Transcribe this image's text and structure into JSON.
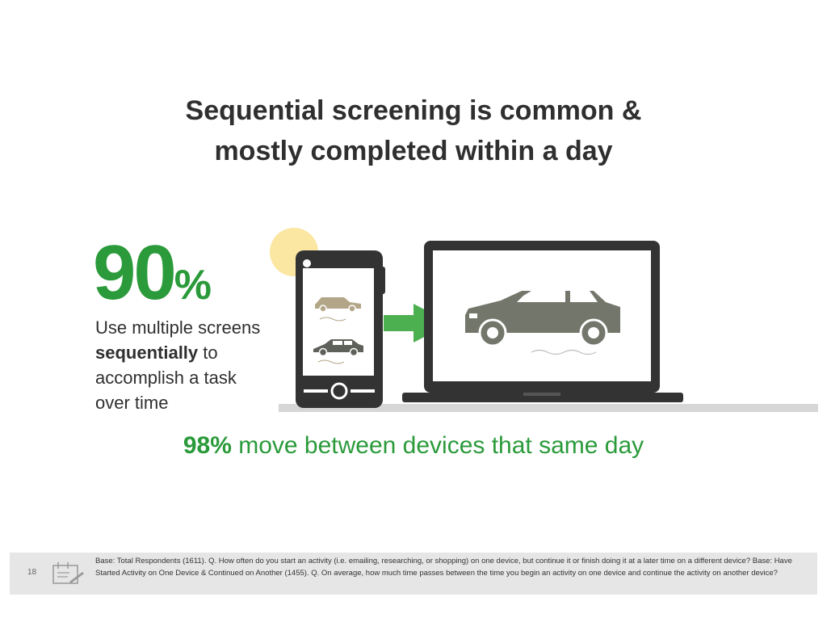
{
  "title": {
    "line1": "Sequential screening is common &",
    "line2": "mostly completed within a day"
  },
  "stat": {
    "number": "90",
    "percent_sign": "%",
    "desc_line1": "Use multiple screens",
    "desc_bold": "sequentially",
    "desc_after_bold": " to",
    "desc_line3": "accomplish a task",
    "desc_line4": "over time"
  },
  "sub_stat": {
    "bold": "98%",
    "text": " move between devices that same day"
  },
  "footer": {
    "page_number": "18",
    "note": "Base: Total Respondents (1611). Q. How often do you start an activity (i.e. emailing, researching, or shopping) on one device, but continue it or finish doing it at a later time on a different device? Base: Have Started Activity on One Device & Continued on Another (1455). Q. On average, how much time passes between the time you begin an activity on one device and continue the activity on another device?"
  },
  "colors": {
    "accent_green": "#2a9a3a",
    "arrow_green": "#4caf50",
    "sun": "#fbe6a2",
    "moon": "#d7e3dc",
    "device_dark": "#333333",
    "car_gray": "#73766a",
    "car_beige": "#b3a688"
  },
  "icons": [
    "sun-icon",
    "moon-icon",
    "smartphone-icon",
    "laptop-icon",
    "arrow-right-icon",
    "car-icon",
    "note-icon"
  ]
}
